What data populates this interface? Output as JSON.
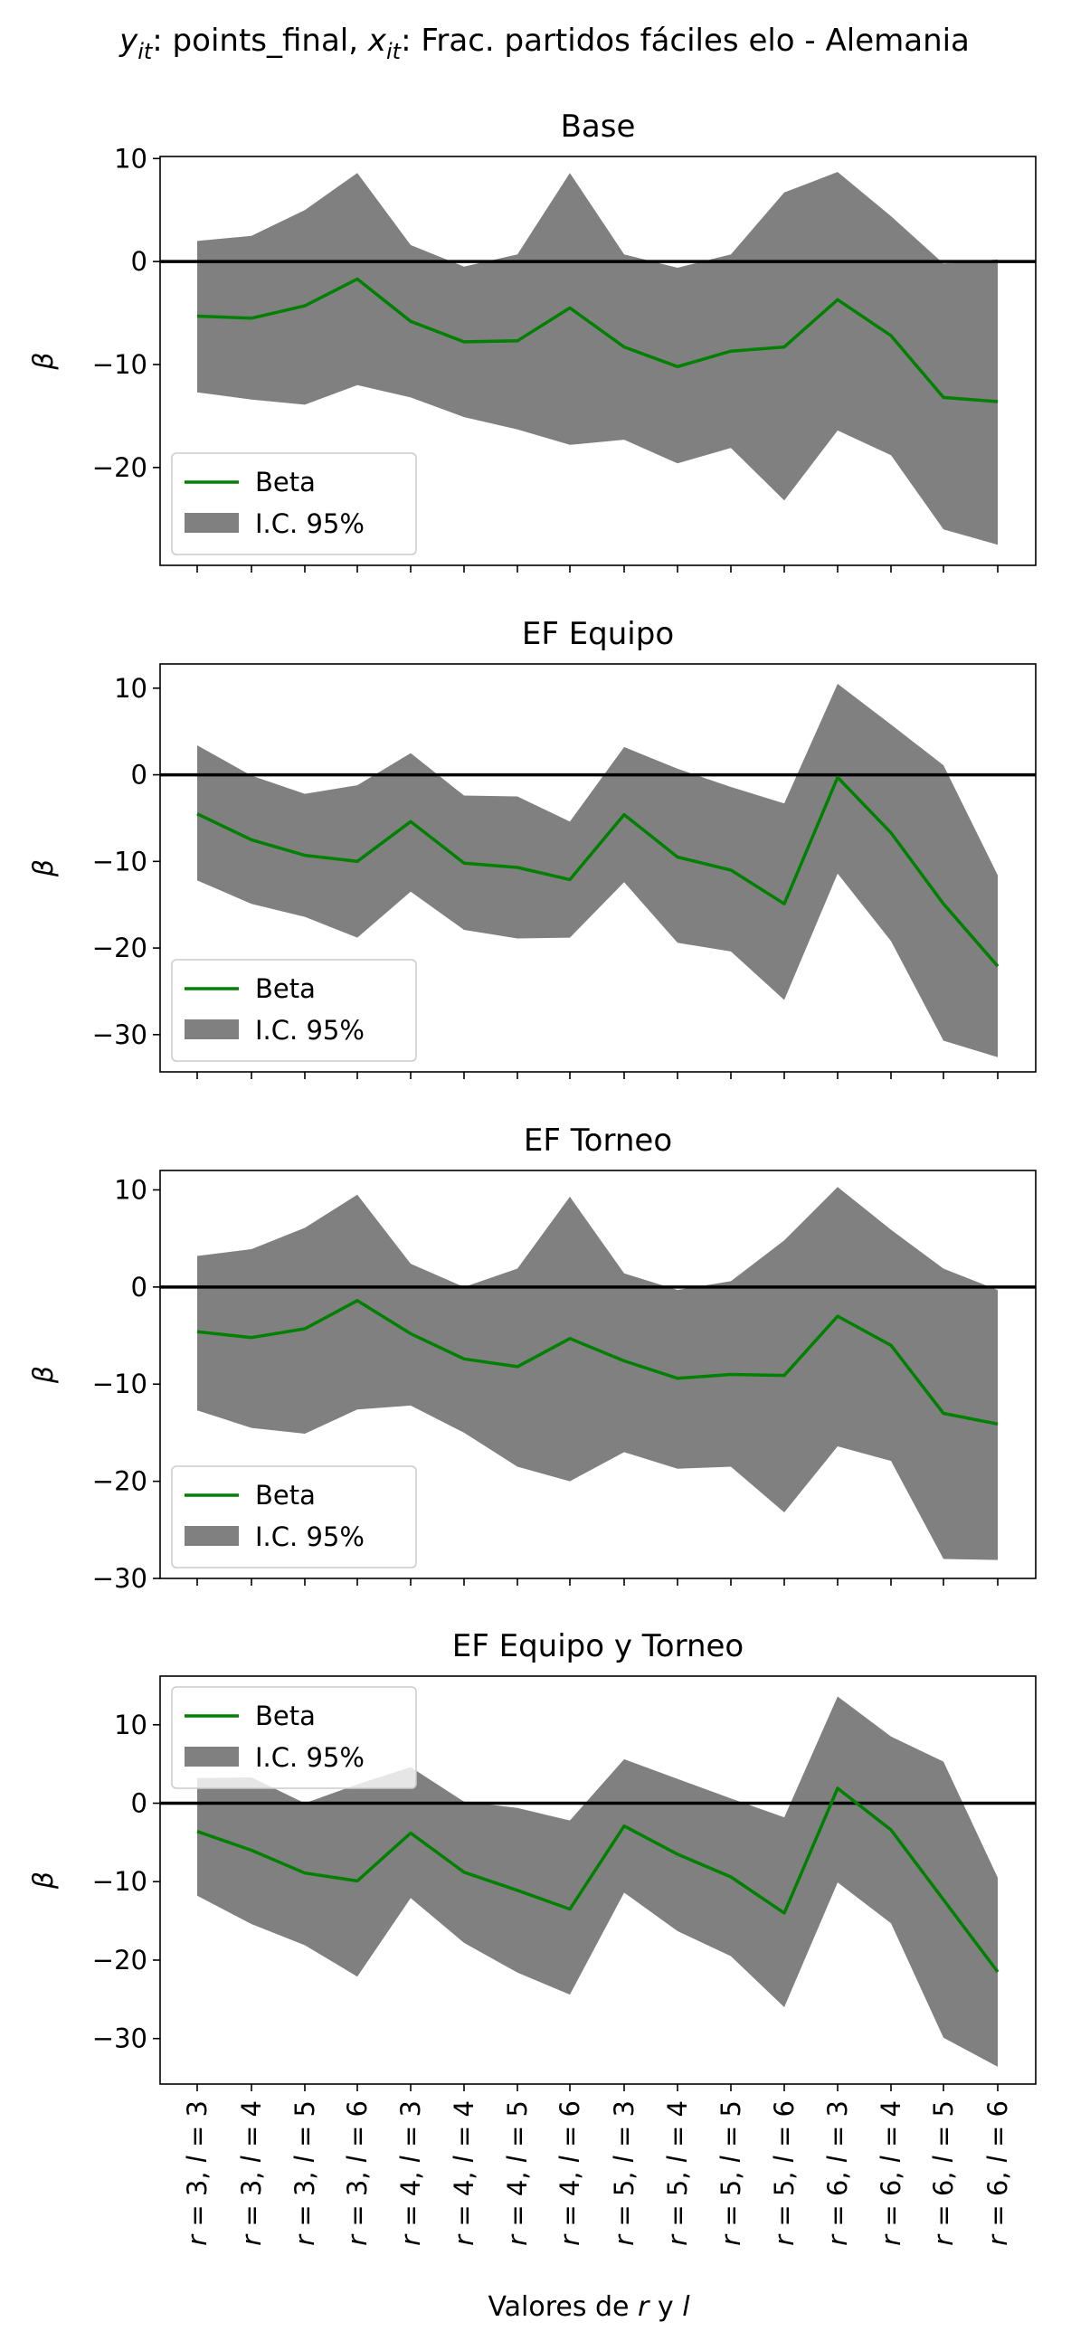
{
  "suptitle": {
    "y_symbol": "y",
    "y_sub": "it",
    "y_desc": ": points_final, ",
    "x_symbol": "x",
    "x_sub": "it",
    "x_desc": ": Frac. partidos fáciles elo - Alemania"
  },
  "colors": {
    "beta_line": "#008000",
    "ci_fill": "#808080",
    "zero_line": "#000000"
  },
  "chart_data": [
    {
      "type": "line",
      "title": "Base",
      "ylabel": "β",
      "ylim": [
        -29.5,
        10.2
      ],
      "yticks": [
        10,
        0,
        -10,
        -20
      ],
      "legend": [
        "Beta",
        "I.C. 95%"
      ],
      "legend_position": "lower-left",
      "zero_line": true,
      "beta": [
        -5.3,
        -5.5,
        -4.3,
        -1.7,
        -5.8,
        -7.8,
        -7.7,
        -4.5,
        -8.3,
        -10.2,
        -8.7,
        -8.3,
        -3.7,
        -7.2,
        -13.2,
        -13.6
      ],
      "ci_upper": [
        2.0,
        2.5,
        5.0,
        8.6,
        1.6,
        -0.5,
        0.7,
        8.6,
        0.7,
        -0.6,
        0.7,
        6.7,
        8.7,
        4.4,
        -0.2,
        0.2
      ],
      "ci_lower": [
        -12.7,
        -13.4,
        -13.9,
        -12.0,
        -13.2,
        -15.1,
        -16.3,
        -17.8,
        -17.3,
        -19.6,
        -18.1,
        -23.2,
        -16.4,
        -18.8,
        -26.0,
        -27.5
      ]
    },
    {
      "type": "line",
      "title": "EF Equipo",
      "ylabel": "β",
      "ylim": [
        -34.3,
        12.8
      ],
      "yticks": [
        10,
        0,
        -10,
        -20,
        -30
      ],
      "legend": [
        "Beta",
        "I.C. 95%"
      ],
      "legend_position": "lower-left",
      "zero_line": true,
      "beta": [
        -4.5,
        -7.5,
        -9.3,
        -10.0,
        -5.4,
        -10.2,
        -10.7,
        -12.1,
        -4.6,
        -9.5,
        -11.0,
        -14.9,
        -0.3,
        -6.7,
        -14.9,
        -22.1
      ],
      "ci_upper": [
        3.4,
        -0.1,
        -2.2,
        -1.2,
        2.5,
        -2.4,
        -2.5,
        -5.4,
        3.2,
        0.7,
        -1.4,
        -3.3,
        10.5,
        5.8,
        1.1,
        -11.6
      ],
      "ci_lower": [
        -12.2,
        -14.9,
        -16.4,
        -18.8,
        -13.5,
        -17.9,
        -18.9,
        -18.8,
        -12.4,
        -19.4,
        -20.4,
        -26.0,
        -11.4,
        -19.2,
        -30.7,
        -32.6
      ]
    },
    {
      "type": "line",
      "title": "EF Torneo",
      "ylabel": "β",
      "ylim": [
        -30.0,
        12.0
      ],
      "yticks": [
        10,
        0,
        -10,
        -20,
        -30
      ],
      "legend": [
        "Beta",
        "I.C. 95%"
      ],
      "legend_position": "lower-left",
      "zero_line": true,
      "beta": [
        -4.6,
        -5.2,
        -4.3,
        -1.4,
        -4.8,
        -7.4,
        -8.2,
        -5.3,
        -7.6,
        -9.4,
        -9.0,
        -9.1,
        -3.0,
        -6.0,
        -13.0,
        -14.1
      ],
      "ci_upper": [
        3.2,
        3.9,
        6.1,
        9.5,
        2.4,
        0.0,
        1.9,
        9.3,
        1.4,
        -0.3,
        0.6,
        4.8,
        10.3,
        5.9,
        1.9,
        -0.3
      ],
      "ci_lower": [
        -12.7,
        -14.5,
        -15.1,
        -12.6,
        -12.2,
        -15.0,
        -18.5,
        -20.0,
        -17.0,
        -18.7,
        -18.5,
        -23.2,
        -16.4,
        -17.9,
        -28.0,
        -28.1
      ]
    },
    {
      "type": "line",
      "title": "EF Equipo y Torneo",
      "ylabel": "β",
      "ylim": [
        -35.8,
        16.2
      ],
      "yticks": [
        10,
        0,
        -10,
        -20,
        -30
      ],
      "legend": [
        "Beta",
        "I.C. 95%"
      ],
      "legend_position": "upper-left",
      "zero_line": true,
      "beta": [
        -3.6,
        -6.0,
        -8.9,
        -9.9,
        -3.8,
        -8.8,
        -11.1,
        -13.5,
        -2.9,
        -6.5,
        -9.4,
        -14.0,
        1.9,
        -3.4,
        -12.3,
        -21.5
      ],
      "ci_upper": [
        3.2,
        3.3,
        0.0,
        2.4,
        4.6,
        0.2,
        -0.6,
        -2.2,
        5.6,
        3.1,
        0.6,
        -1.8,
        13.6,
        8.5,
        5.3,
        -9.5
      ],
      "ci_lower": [
        -11.8,
        -15.4,
        -18.1,
        -22.1,
        -12.1,
        -17.8,
        -21.6,
        -24.4,
        -11.4,
        -16.3,
        -19.5,
        -26.0,
        -10.1,
        -15.3,
        -29.9,
        -33.6
      ]
    }
  ],
  "shared_x": {
    "categories": [
      "r = 3, l = 3",
      "r = 3, l = 4",
      "r = 3, l = 5",
      "r = 3, l = 6",
      "r = 4, l = 3",
      "r = 4, l = 4",
      "r = 4, l = 5",
      "r = 4, l = 6",
      "r = 5, l = 3",
      "r = 5, l = 4",
      "r = 5, l = 5",
      "r = 5, l = 6",
      "r = 6, l = 3",
      "r = 6, l = 4",
      "r = 6, l = 5",
      "r = 6, l = 6"
    ],
    "tick_r": [
      "3",
      "3",
      "3",
      "3",
      "4",
      "4",
      "4",
      "4",
      "5",
      "5",
      "5",
      "5",
      "6",
      "6",
      "6",
      "6"
    ],
    "tick_l": [
      "3",
      "4",
      "5",
      "6",
      "3",
      "4",
      "5",
      "6",
      "3",
      "4",
      "5",
      "6",
      "3",
      "4",
      "5",
      "6"
    ],
    "xlabel_prefix": "Valores de ",
    "xlabel_r": "r",
    "xlabel_mid": " y ",
    "xlabel_l": "l"
  }
}
